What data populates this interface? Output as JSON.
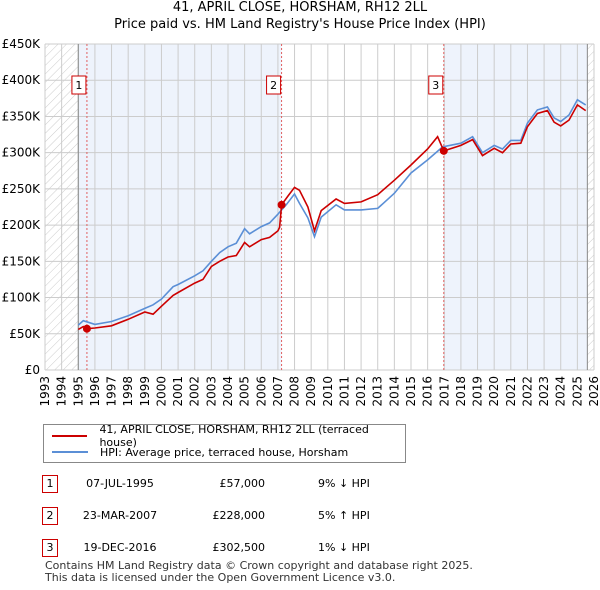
{
  "chart_data": {
    "type": "line",
    "title": "41, APRIL CLOSE, HORSHAM, RH12 2LL",
    "subtitle": "Price paid vs. HM Land Registry's House Price Index (HPI)",
    "xlim": [
      1993,
      2026
    ],
    "ylim": [
      0,
      450000
    ],
    "x_ticks": [
      "1993",
      "1994",
      "1995",
      "1996",
      "1997",
      "1998",
      "1999",
      "2000",
      "2001",
      "2002",
      "2003",
      "2004",
      "2005",
      "2006",
      "2007",
      "2008",
      "2009",
      "2010",
      "2011",
      "2012",
      "2013",
      "2014",
      "2015",
      "2016",
      "2017",
      "2018",
      "2019",
      "2020",
      "2021",
      "2022",
      "2023",
      "2024",
      "2025",
      "2026"
    ],
    "y_ticks": [
      {
        "v": 0,
        "label": "£0"
      },
      {
        "v": 50000,
        "label": "£50K"
      },
      {
        "v": 100000,
        "label": "£100K"
      },
      {
        "v": 150000,
        "label": "£150K"
      },
      {
        "v": 200000,
        "label": "£200K"
      },
      {
        "v": 250000,
        "label": "£250K"
      },
      {
        "v": 300000,
        "label": "£300K"
      },
      {
        "v": 350000,
        "label": "£350K"
      },
      {
        "v": 400000,
        "label": "£400K"
      },
      {
        "v": 450000,
        "label": "£450K"
      }
    ],
    "grid": true,
    "data_range": [
      1995.0,
      2025.6
    ],
    "series": [
      {
        "name": "41, APRIL CLOSE, HORSHAM, RH12 2LL (terraced house)",
        "color": "#cc0000",
        "x": [
          1995.0,
          1995.3,
          1995.52,
          1996,
          1997,
          1998,
          1999,
          1999.5,
          2000,
          2000.7,
          2001,
          2002,
          2002.5,
          2003,
          2003.5,
          2004,
          2004.5,
          2005,
          2005.3,
          2006,
          2006.5,
          2007,
          2007.1,
          2007.22,
          2007.6,
          2008,
          2008.3,
          2008.8,
          2009.2,
          2009.6,
          2010.5,
          2011,
          2012,
          2013,
          2014,
          2015,
          2016,
          2016.6,
          2016.97,
          2018,
          2018.7,
          2019.3,
          2020,
          2020.5,
          2021,
          2021.6,
          2022,
          2022.6,
          2023.2,
          2023.6,
          2024,
          2024.5,
          2025,
          2025.5
        ],
        "y": [
          56000,
          60000,
          57000,
          58000,
          61000,
          70000,
          80000,
          77000,
          88000,
          103000,
          107000,
          120000,
          125000,
          143000,
          150000,
          156000,
          158000,
          176000,
          170000,
          180000,
          183000,
          192000,
          197000,
          228000,
          240000,
          252000,
          248000,
          225000,
          192000,
          220000,
          236000,
          230000,
          232000,
          242000,
          262000,
          283000,
          305000,
          322000,
          302500,
          310000,
          318000,
          296000,
          306000,
          300000,
          312000,
          313000,
          336000,
          354000,
          358000,
          342000,
          337000,
          345000,
          366000,
          358000
        ]
      },
      {
        "name": "HPI: Average price, terraced house, Horsham",
        "color": "#5b8fd6",
        "x": [
          1995.0,
          1995.3,
          1996,
          1997,
          1998,
          1999,
          1999.5,
          2000,
          2000.7,
          2001,
          2002,
          2002.5,
          2003,
          2003.5,
          2004,
          2004.5,
          2005,
          2005.3,
          2006,
          2006.5,
          2007,
          2007.5,
          2008,
          2008.3,
          2008.8,
          2009.2,
          2009.6,
          2010.5,
          2011,
          2012,
          2013,
          2014,
          2015,
          2016,
          2016.9,
          2018,
          2018.7,
          2019.3,
          2020,
          2020.5,
          2021,
          2021.6,
          2022,
          2022.6,
          2023.2,
          2023.6,
          2024,
          2024.5,
          2025,
          2025.5
        ],
        "y": [
          62000,
          68000,
          63000,
          67000,
          75000,
          85000,
          90000,
          98000,
          115000,
          118000,
          130000,
          137000,
          150000,
          162000,
          170000,
          175000,
          195000,
          188000,
          198000,
          203000,
          215000,
          228000,
          243000,
          230000,
          210000,
          184000,
          211000,
          228000,
          221000,
          221000,
          223000,
          244000,
          272000,
          290000,
          308000,
          313000,
          322000,
          300000,
          310000,
          305000,
          317000,
          317000,
          341000,
          359000,
          363000,
          348000,
          343000,
          352000,
          373000,
          366000
        ]
      }
    ],
    "sales": [
      {
        "label": "1",
        "x": 1995.52,
        "y": 57000
      },
      {
        "label": "2",
        "x": 2007.22,
        "y": 228000
      },
      {
        "label": "3",
        "x": 2016.97,
        "y": 302500
      }
    ]
  },
  "legend": {
    "red": "41, APRIL CLOSE, HORSHAM, RH12 2LL (terraced house)",
    "blue": "HPI: Average price, terraced house, Horsham"
  },
  "table": [
    {
      "n": "1",
      "date": "07-JUL-1995",
      "price": "£57,000",
      "hpi": "9% ↓ HPI"
    },
    {
      "n": "2",
      "date": "23-MAR-2007",
      "price": "£228,000",
      "hpi": "5% ↑ HPI"
    },
    {
      "n": "3",
      "date": "19-DEC-2016",
      "price": "£302,500",
      "hpi": "1% ↓ HPI"
    }
  ],
  "footer": [
    "Contains HM Land Registry data © Crown copyright and database right 2025.",
    "This data is licensed under the Open Government Licence v3.0."
  ]
}
